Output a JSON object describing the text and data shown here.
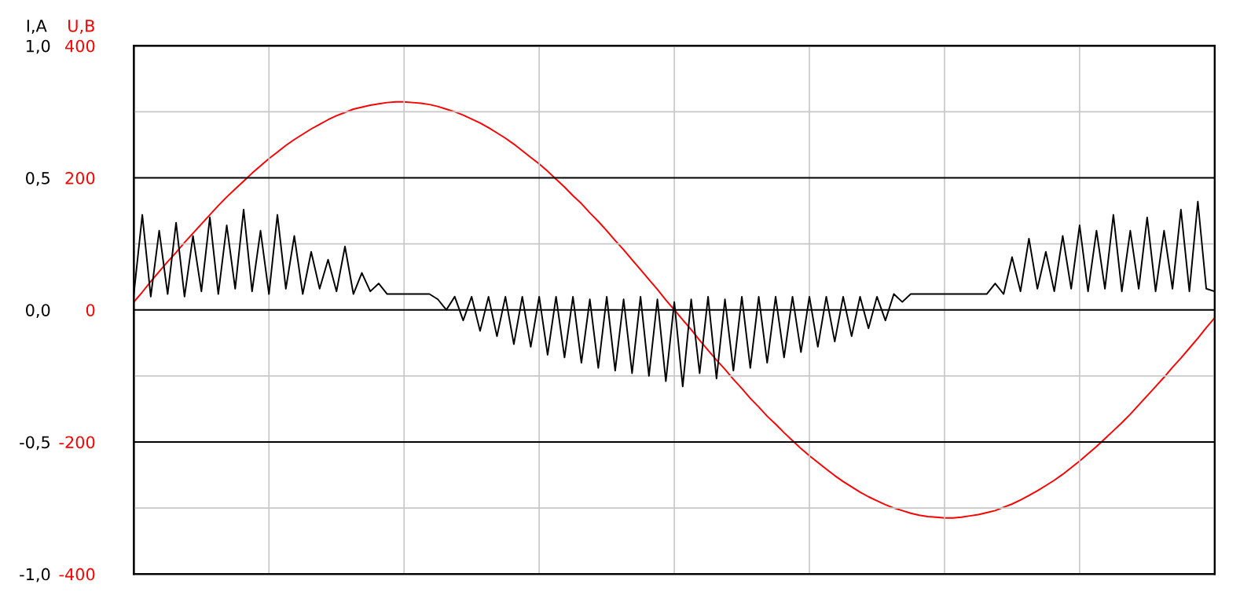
{
  "chart_data": {
    "type": "line",
    "ylabel": "I,A",
    "y2label": "U,B",
    "categories": [
      null,
      null,
      null,
      null,
      null,
      null,
      null,
      null,
      null,
      null,
      null,
      null,
      null,
      null,
      null,
      null,
      null,
      null,
      null,
      null,
      null,
      null,
      null,
      null,
      null,
      null,
      null,
      null,
      null,
      null,
      null,
      null,
      null,
      null,
      null,
      null,
      null,
      null,
      null,
      null,
      null,
      null,
      null,
      null,
      null,
      null,
      null,
      null,
      null,
      null,
      null,
      null,
      null,
      null,
      null,
      null,
      null,
      null,
      null,
      null,
      null,
      null,
      null,
      null,
      null,
      null,
      null,
      null,
      null,
      null,
      null,
      null,
      null,
      null,
      null,
      null,
      null,
      null,
      null,
      null,
      null,
      null,
      null,
      null,
      null,
      null,
      null,
      null,
      null,
      null,
      null,
      null,
      null,
      null,
      null,
      null,
      null,
      null,
      null,
      null,
      null,
      null,
      null,
      null,
      null,
      null,
      null,
      null,
      null,
      null,
      null,
      null,
      null,
      null,
      null,
      null,
      null,
      null,
      null,
      null,
      null,
      null,
      null,
      null,
      null,
      null,
      null,
      null,
      null
    ],
    "ylim": [
      -1,
      1
    ],
    "yticks": [
      {
        "value": -1,
        "label": "-1,0"
      },
      {
        "value": -0.75,
        "label": null
      },
      {
        "value": -0.5,
        "label": "-0,5"
      },
      {
        "value": -0.25,
        "label": null
      },
      {
        "value": 0,
        "label": "0,0"
      },
      {
        "value": 0.25,
        "label": null
      },
      {
        "value": 0.5,
        "label": "0,5"
      },
      {
        "value": 0.75,
        "label": null
      },
      {
        "value": 1,
        "label": "1,0"
      }
    ],
    "y2lim": [
      -400,
      400
    ],
    "y2ticks": [
      -400,
      -200,
      0,
      200,
      400
    ],
    "grid": true,
    "series": [
      {
        "color": "#000000",
        "axis": "y",
        "values": [
          0.06,
          0.36,
          0.05,
          0.3,
          0.06,
          0.33,
          0.05,
          0.28,
          0.07,
          0.35,
          0.06,
          0.32,
          0.08,
          0.38,
          0.07,
          0.3,
          0.06,
          0.36,
          0.08,
          0.28,
          0.06,
          0.22,
          0.08,
          0.19,
          0.07,
          0.24,
          0.06,
          0.14,
          0.07,
          0.1,
          0.06,
          0.06,
          0.06,
          0.06,
          0.06,
          0.06,
          0.04,
          0.0,
          0.05,
          -0.04,
          0.05,
          -0.08,
          0.05,
          -0.1,
          0.05,
          -0.13,
          0.05,
          -0.14,
          0.05,
          -0.17,
          0.05,
          -0.18,
          0.05,
          -0.2,
          0.04,
          -0.22,
          0.05,
          -0.23,
          0.04,
          -0.24,
          0.05,
          -0.25,
          0.04,
          -0.27,
          0.03,
          -0.29,
          0.04,
          -0.24,
          0.05,
          -0.26,
          0.04,
          -0.23,
          0.05,
          -0.22,
          0.05,
          -0.2,
          0.05,
          -0.18,
          0.05,
          -0.16,
          0.05,
          -0.14,
          0.05,
          -0.12,
          0.05,
          -0.1,
          0.05,
          -0.07,
          0.05,
          -0.04,
          0.06,
          0.03,
          0.06,
          0.06,
          0.06,
          0.06,
          0.06,
          0.06,
          0.06,
          0.06,
          0.06,
          0.06,
          0.1,
          0.06,
          0.2,
          0.07,
          0.27,
          0.08,
          0.22,
          0.07,
          0.28,
          0.08,
          0.32,
          0.07,
          0.3,
          0.08,
          0.36,
          0.07,
          0.3,
          0.08,
          0.35,
          0.07,
          0.3,
          0.08,
          0.38,
          0.07,
          0.41,
          0.08,
          0.07
        ]
      },
      {
        "color": "#ff0000",
        "axis": "y2",
        "values": [
          12,
          27,
          43,
          58,
          73,
          87,
          102,
          116,
          130,
          144,
          158,
          171,
          183,
          195,
          207,
          218,
          229,
          239,
          249,
          258,
          266,
          274,
          281,
          288,
          294,
          299,
          304,
          307,
          310,
          312,
          314,
          315,
          315,
          314,
          313,
          311,
          308,
          304,
          300,
          295,
          289,
          283,
          276,
          268,
          260,
          251,
          241,
          231,
          221,
          210,
          198,
          186,
          173,
          161,
          147,
          134,
          120,
          105,
          91,
          76,
          61,
          46,
          31,
          15,
          0,
          -15,
          -30,
          -46,
          -61,
          -76,
          -90,
          -105,
          -119,
          -134,
          -147,
          -161,
          -173,
          -186,
          -198,
          -210,
          -221,
          -231,
          -241,
          -251,
          -260,
          -268,
          -276,
          -283,
          -289,
          -295,
          -300,
          -304,
          -308,
          -311,
          -313,
          -314,
          -315,
          -315,
          -314,
          -312,
          -310,
          -307,
          -304,
          -299,
          -294,
          -288,
          -281,
          -274,
          -266,
          -258,
          -249,
          -239,
          -229,
          -218,
          -207,
          -195,
          -183,
          -171,
          -158,
          -144,
          -130,
          -116,
          -102,
          -87,
          -73,
          -58,
          -43,
          -27,
          -12
        ]
      }
    ]
  }
}
